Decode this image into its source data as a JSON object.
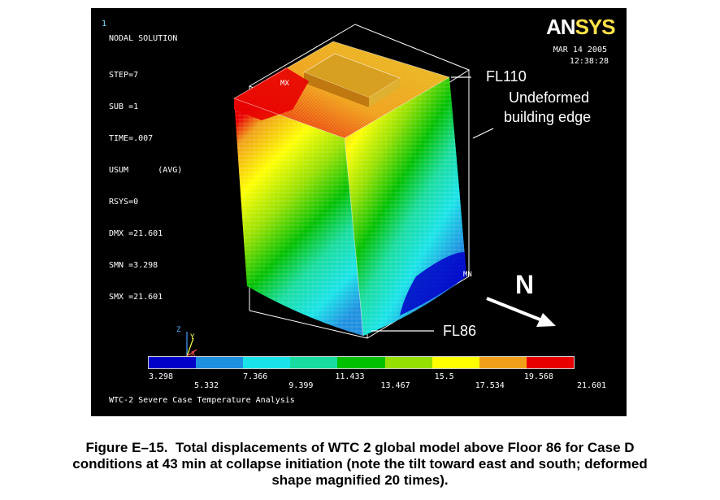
{
  "panel": {
    "window_number": "1",
    "solution_title": "NODAL SOLUTION",
    "params": [
      "STEP=7",
      "SUB =1",
      "TIME=.007",
      "USUM      (AVG)",
      "RSYS=0",
      "DMX =21.601",
      "SMN =3.298",
      "SMX =21.601"
    ],
    "logo_main": "AN",
    "logo_accent": "SYS",
    "date": "MAR 14 2005",
    "time": "12:38:28",
    "footer": "WTC-2 Severe Case Temperature Analysis",
    "max_marker": "MX",
    "min_marker": "MN",
    "axis_labels": {
      "x": "X",
      "y": "Y",
      "z": "Z"
    }
  },
  "annotations": {
    "fl110": "FL110",
    "undeformed_line1": "Undeformed",
    "undeformed_line2": "building edge",
    "fl86": "FL86",
    "north": "N"
  },
  "legend": {
    "colors": [
      "#0000c8",
      "#1f8fe0",
      "#19e3e8",
      "#18dca0",
      "#00c000",
      "#95e000",
      "#ffff00",
      "#f0a018",
      "#e80000"
    ],
    "labels_top_row": [
      "3.298",
      "7.366",
      "11.433",
      "15.5",
      "19.568"
    ],
    "labels_bottom_row": [
      "5.332",
      "9.399",
      "13.467",
      "17.534",
      "21.601"
    ]
  },
  "caption": {
    "line1": "Figure E–15.  Total displacements of WTC 2 global model above Floor 86 for Case D",
    "line2": "conditions at 43 min at collapse initiation (note the tilt toward east and south; deformed",
    "line3": "shape magnified 20 times)."
  }
}
